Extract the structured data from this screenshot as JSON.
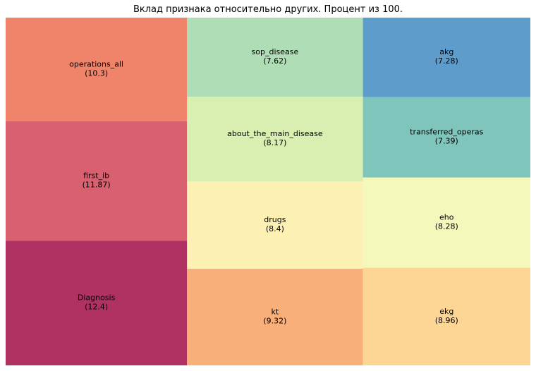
{
  "chart_data": {
    "type": "treemap",
    "title": "Вклад признака относительно других. Процент из 100.",
    "items": [
      {
        "name": "Diagnosis",
        "value": 12.4,
        "display": "12.4",
        "color": "#b03263"
      },
      {
        "name": "first_ib",
        "value": 11.87,
        "display": "11.87",
        "color": "#d8606f"
      },
      {
        "name": "operations_all",
        "value": 10.3,
        "display": "10.3",
        "color": "#f0846a"
      },
      {
        "name": "kt",
        "value": 9.32,
        "display": "9.32",
        "color": "#f9af7a"
      },
      {
        "name": "drugs",
        "value": 8.4,
        "display": "8.4",
        "color": "#fdf0b3"
      },
      {
        "name": "about_the_main_disease",
        "value": 8.17,
        "display": "8.17",
        "color": "#d9eeb1"
      },
      {
        "name": "sop_disease",
        "value": 7.62,
        "display": "7.62",
        "color": "#afddb5"
      },
      {
        "name": "ekg",
        "value": 8.96,
        "display": "8.96",
        "color": "#fdd594"
      },
      {
        "name": "eho",
        "value": 8.28,
        "display": "8.28",
        "color": "#f5f8bb"
      },
      {
        "name": "transferred_operas",
        "value": 7.39,
        "display": "7.39",
        "color": "#7fc5bb"
      },
      {
        "name": "akg",
        "value": 7.28,
        "display": "7.28",
        "color": "#5e9ccb"
      }
    ]
  }
}
